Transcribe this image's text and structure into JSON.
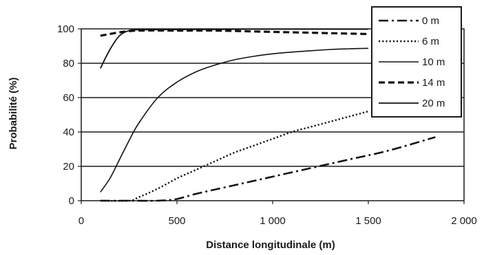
{
  "chart_data": {
    "type": "line",
    "xlabel": "Distance longitudinale (m)",
    "ylabel": "Probabilité (%)",
    "xlim": [
      0,
      2000
    ],
    "ylim": [
      0,
      100
    ],
    "x_ticks": [
      0,
      500,
      1000,
      1500,
      2000
    ],
    "x_tick_labels": [
      "0",
      "500",
      "1 000",
      "1 500",
      "2 000"
    ],
    "y_ticks": [
      0,
      20,
      40,
      60,
      80,
      100
    ],
    "y_tick_labels": [
      "0",
      "20",
      "40",
      "60",
      "80",
      "100"
    ],
    "grid": "horizontal",
    "legend_position": "top-right",
    "series": [
      {
        "name": "0 m",
        "style": "dash-dot",
        "color": "#111111",
        "x": [
          100,
          250,
          400,
          500,
          600,
          800,
          1000,
          1200,
          1400,
          1600,
          1850
        ],
        "y": [
          0,
          0,
          0,
          1,
          4,
          9,
          14,
          19,
          24,
          29,
          37
        ]
      },
      {
        "name": "6 m",
        "style": "dotted",
        "color": "#111111",
        "x": [
          100,
          250,
          300,
          400,
          500,
          600,
          700,
          800,
          900,
          1000,
          1100,
          1200,
          1300,
          1400,
          1500
        ],
        "y": [
          0,
          0,
          2,
          7,
          13,
          18,
          23,
          28,
          32,
          36,
          40,
          43,
          46,
          49,
          52
        ]
      },
      {
        "name": "10 m",
        "style": "solid-thin",
        "color": "#111111",
        "x": [
          100,
          150,
          200,
          250,
          300,
          400,
          500,
          600,
          700,
          800,
          900,
          1000,
          1100,
          1200,
          1300,
          1400,
          1500
        ],
        "y": [
          5,
          13,
          24,
          35,
          45,
          60,
          69,
          75,
          79,
          82,
          84,
          85.5,
          86.5,
          87.3,
          88,
          88.4,
          88.7
        ]
      },
      {
        "name": "14 m",
        "style": "dashed",
        "color": "#111111",
        "x": [
          100,
          200,
          300,
          500,
          700,
          900,
          1100,
          1300,
          1500
        ],
        "y": [
          96,
          98,
          99,
          99,
          99,
          98.5,
          98,
          97.5,
          97
        ]
      },
      {
        "name": "20 m",
        "style": "solid",
        "color": "#111111",
        "x": [
          100,
          150,
          200,
          250,
          300,
          500,
          700,
          900,
          1100,
          1300,
          1500
        ],
        "y": [
          77,
          88,
          96,
          99,
          99.5,
          99.6,
          99.7,
          99.8,
          99.8,
          99.8,
          99.8
        ]
      }
    ]
  }
}
